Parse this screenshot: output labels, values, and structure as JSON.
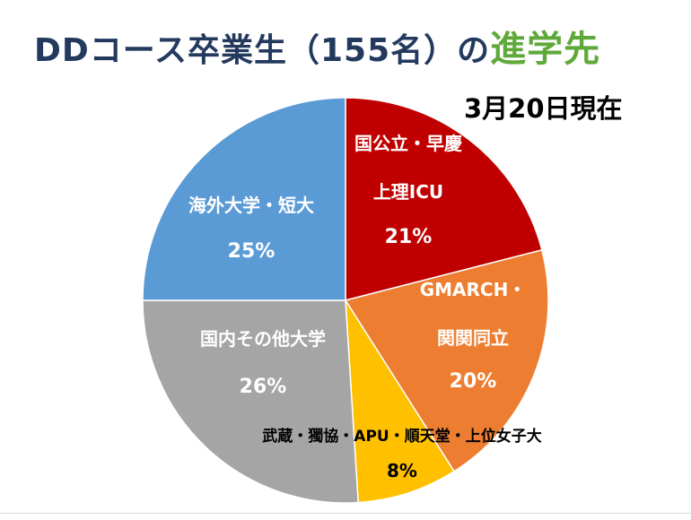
{
  "title": {
    "main": "DDコース卒業生（155名）の",
    "accent": "進学先"
  },
  "date_label": "3月20日現在",
  "chart_data": {
    "type": "pie",
    "title": "DDコース卒業生（155名）の進学先",
    "slices": [
      {
        "label_lines": [
          "国公立・早慶",
          "上理ICU"
        ],
        "value": 21,
        "value_label": "21%",
        "color": "#c00000"
      },
      {
        "label_lines": [
          "GMARCH・",
          "関関同立"
        ],
        "value": 20,
        "value_label": "20%",
        "color": "#ed7d31"
      },
      {
        "label_lines": [
          "武蔵・獨協・APU・順天堂・上位女子大"
        ],
        "value": 8,
        "value_label": "8%",
        "color": "#ffc000"
      },
      {
        "label_lines": [
          "国内その他大学"
        ],
        "value": 26,
        "value_label": "26%",
        "color": "#a5a5a5"
      },
      {
        "label_lines": [
          "海外大学・短大"
        ],
        "value": 25,
        "value_label": "25%",
        "color": "#5b9bd5"
      }
    ],
    "legend": "none"
  }
}
